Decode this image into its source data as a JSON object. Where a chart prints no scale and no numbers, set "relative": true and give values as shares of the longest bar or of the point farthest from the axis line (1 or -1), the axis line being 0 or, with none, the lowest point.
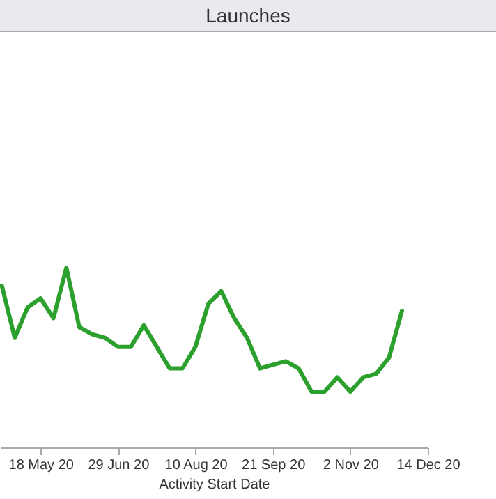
{
  "chart_data": {
    "type": "line",
    "title": "Launches",
    "xlabel": "Activity Start Date",
    "relative": true,
    "x": [
      "2020-04-27",
      "2020-05-04",
      "2020-05-11",
      "2020-05-18",
      "2020-05-25",
      "2020-06-01",
      "2020-06-08",
      "2020-06-15",
      "2020-06-22",
      "2020-06-29",
      "2020-07-06",
      "2020-07-13",
      "2020-07-20",
      "2020-07-27",
      "2020-08-03",
      "2020-08-10",
      "2020-08-17",
      "2020-08-24",
      "2020-08-31",
      "2020-09-07",
      "2020-09-14",
      "2020-09-21",
      "2020-09-28",
      "2020-10-05",
      "2020-10-12",
      "2020-10-19",
      "2020-10-26",
      "2020-11-02",
      "2020-11-09",
      "2020-11-16",
      "2020-11-23",
      "2020-11-30"
    ],
    "series": [
      {
        "color": "#2ca02c",
        "values": [
          0.9,
          0.61,
          0.78,
          0.83,
          0.72,
          1,
          0.67,
          0.63,
          0.61,
          0.56,
          0.56,
          0.68,
          0.56,
          0.44,
          0.44,
          0.56,
          0.8,
          0.87,
          0.72,
          0.61,
          0.44,
          0.46,
          0.48,
          0.44,
          0.31,
          0.31,
          0.39,
          0.31,
          0.39,
          0.41,
          0.5,
          0.76
        ]
      }
    ],
    "xlim": [
      "2020-04-26",
      "2020-12-14"
    ],
    "xticks": [
      {
        "value": "2020-05-18",
        "label": "18 May 20"
      },
      {
        "value": "2020-06-29",
        "label": "29 Jun 20"
      },
      {
        "value": "2020-08-10",
        "label": "10 Aug 20"
      },
      {
        "value": "2020-09-21",
        "label": "21 Sep 20"
      },
      {
        "value": "2020-11-02",
        "label": "2 Nov 20"
      },
      {
        "value": "2020-12-14",
        "label": "14 Dec 20"
      }
    ],
    "grid": false,
    "marker": "none",
    "line_style": "solid"
  }
}
